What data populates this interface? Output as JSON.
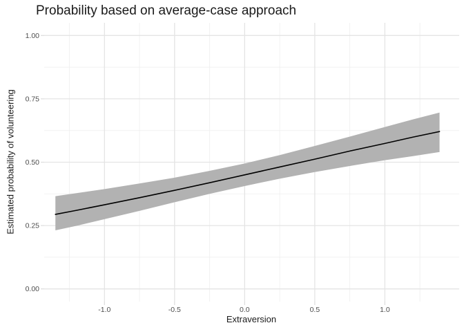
{
  "chart_data": {
    "type": "line",
    "title": "Probability based on average-case approach",
    "xlabel": "Extraversion",
    "ylabel": "Estimated probability of volunteering",
    "xlim": [
      -1.43,
      1.53
    ],
    "ylim": [
      -0.05,
      1.05
    ],
    "x_ticks": [
      -1.0,
      -0.5,
      0.0,
      0.5,
      1.0
    ],
    "x_tick_labels": [
      "-1.0",
      "-0.5",
      "0.0",
      "0.5",
      "1.0"
    ],
    "y_ticks": [
      0.0,
      0.25,
      0.5,
      0.75,
      1.0
    ],
    "y_tick_labels": [
      "0.00",
      "0.25",
      "0.50",
      "0.75",
      "1.00"
    ],
    "grid": "major-and-minor",
    "legend": "none",
    "x": [
      -1.35,
      -1.2,
      -1.0,
      -0.75,
      -0.5,
      -0.25,
      0.0,
      0.25,
      0.5,
      0.75,
      1.0,
      1.2,
      1.39
    ],
    "series": [
      {
        "name": "estimated-probability-fit",
        "values": [
          0.294,
          0.31,
          0.332,
          0.36,
          0.389,
          0.419,
          0.45,
          0.481,
          0.512,
          0.544,
          0.574,
          0.599,
          0.621
        ]
      }
    ],
    "confidence_band": {
      "lower": [
        0.231,
        0.249,
        0.275,
        0.308,
        0.342,
        0.375,
        0.406,
        0.435,
        0.461,
        0.485,
        0.508,
        0.524,
        0.54
      ],
      "upper": [
        0.366,
        0.378,
        0.394,
        0.416,
        0.439,
        0.466,
        0.495,
        0.528,
        0.564,
        0.601,
        0.639,
        0.669,
        0.696
      ]
    },
    "colors": {
      "line": "#000000",
      "ribbon": "#b2b2b2",
      "grid_major": "#e4e4e4",
      "grid_minor": "#f0f0f0",
      "axis_tick": "#dcdcdc",
      "tick_label_text": "#4d4d4d",
      "axis_title_text": "#1a1a1a",
      "background": "#ffffff"
    }
  }
}
